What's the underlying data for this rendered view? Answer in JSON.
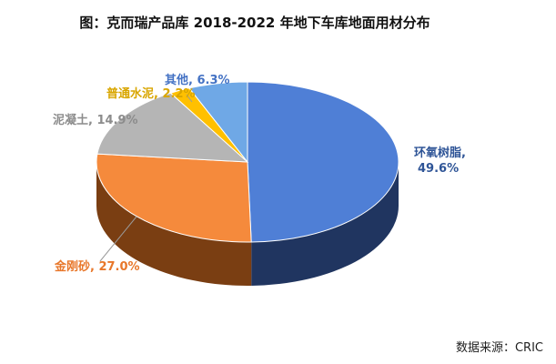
{
  "chart_data": {
    "type": "pie",
    "title": "图：克而瑞产品库 2018-2022 年地下车库地面用材分布",
    "slices": [
      {
        "name": "环氧树脂",
        "value": 49.6,
        "label": "环氧树脂,",
        "value_label": "49.6%",
        "color": "#4F7FD6",
        "side": "#203560",
        "label_color": "#2F5597"
      },
      {
        "name": "金刚砂",
        "value": 27.0,
        "label": "金刚砂, 27.0%",
        "color": "#F58A3C",
        "side": "#7A3E12",
        "label_color": "#E8772A"
      },
      {
        "name": "泥凝土",
        "value": 14.9,
        "label": "泥凝土, 14.9%",
        "color": "#B5B5B5",
        "side": "#6B6B6B",
        "label_color": "#8C8C8C"
      },
      {
        "name": "普通水泥",
        "value": 2.2,
        "label": "普通水泥, 2.2%",
        "color": "#FFC000",
        "side": "#9A7400",
        "label_color": "#D9A600"
      },
      {
        "name": "其他",
        "value": 6.3,
        "label": "其他, 6.3%",
        "color": "#6FA8E6",
        "side": "#2E5E95",
        "label_color": "#4472C4"
      }
    ],
    "legend": "none"
  },
  "source": "数据来源：CRIC"
}
